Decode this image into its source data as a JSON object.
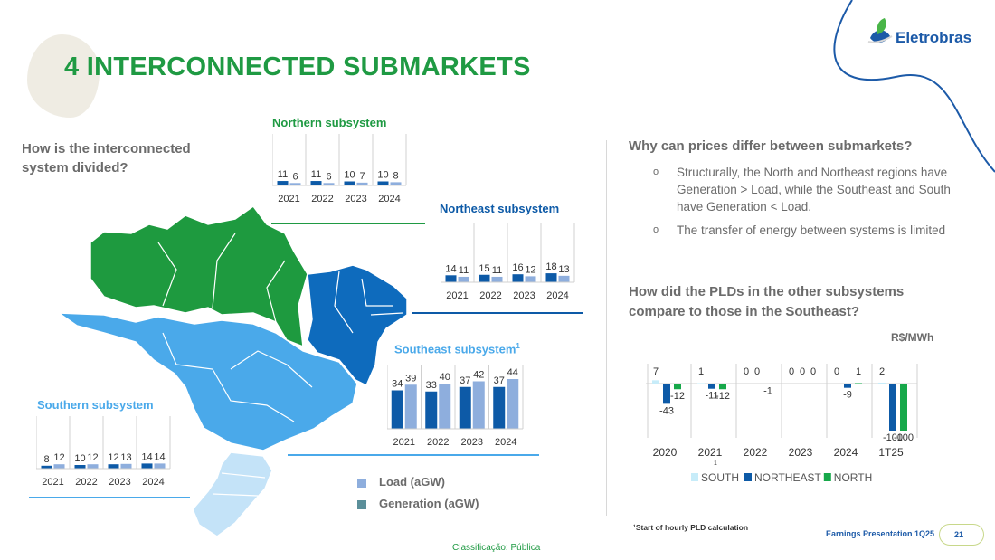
{
  "page": {
    "title": "4 INTERCONNECTED SUBMARKETS",
    "left_question": "How is the interconnected system divided?",
    "logo_text": "Eletrobras",
    "right_question_1": "Why can prices differ between submarkets?",
    "bullets": [
      "Structurally, the North and Northeast regions have Generation > Load, while the Southeast and South have Generation < Load.",
      "The transfer of energy between systems is limited"
    ],
    "right_question_2": "How did the PLDs in the other subsystems compare to those in the Southeast?",
    "unit": "R$/MWh",
    "legend": {
      "load": "Load (aGW)",
      "generation": "Generation (aGW)"
    },
    "footnote": "¹Start of hourly PLD calculation",
    "footnote_sup": "1",
    "classification": "Classificação: Pública",
    "footer": "Earnings Presentation 1Q25",
    "page_number": "21",
    "bullet_mark": "o",
    "icon": "eletrobras-leaf-logo-icon",
    "colors": {
      "title_green": "#1f9a43",
      "dark_blue": "#0d5aa7",
      "light_blue": "#8eaedd",
      "south_cyan": "#c7ecf9",
      "north_green": "#17a84a",
      "map_north": "#1e9a3f",
      "map_northeast": "#0e6bbd",
      "map_southeast": "#4aa9ea",
      "map_south": "#c4e3f8"
    }
  },
  "chart_data": [
    {
      "type": "bar",
      "title": "Northern subsystem",
      "categories": [
        "2021",
        "2022",
        "2023",
        "2024"
      ],
      "series": [
        {
          "name": "Generation (aGW)",
          "values": [
            11,
            11,
            10,
            10
          ]
        },
        {
          "name": "Load (aGW)",
          "values": [
            6,
            6,
            7,
            8
          ]
        }
      ]
    },
    {
      "type": "bar",
      "title": "Northeast subsystem",
      "categories": [
        "2021",
        "2022",
        "2023",
        "2024"
      ],
      "series": [
        {
          "name": "Generation (aGW)",
          "values": [
            14,
            15,
            16,
            18
          ]
        },
        {
          "name": "Load (aGW)",
          "values": [
            11,
            11,
            12,
            13
          ]
        }
      ]
    },
    {
      "type": "bar",
      "title": "Southeast subsystem",
      "title_sup": "1",
      "categories": [
        "2021",
        "2022",
        "2023",
        "2024"
      ],
      "series": [
        {
          "name": "Generation (aGW)",
          "values": [
            34,
            33,
            37,
            37
          ]
        },
        {
          "name": "Load (aGW)",
          "values": [
            39,
            40,
            42,
            44
          ]
        }
      ]
    },
    {
      "type": "bar",
      "title": "Southern subsystem",
      "categories": [
        "2021",
        "2022",
        "2023",
        "2024"
      ],
      "series": [
        {
          "name": "Generation (aGW)",
          "values": [
            8,
            10,
            12,
            14
          ]
        },
        {
          "name": "Load (aGW)",
          "values": [
            12,
            12,
            13,
            14
          ]
        }
      ]
    },
    {
      "type": "bar",
      "categories": [
        "2020",
        "2021",
        "2022",
        "2023",
        "2024",
        "1T25"
      ],
      "category_sup": [
        "",
        "1",
        "",
        "",
        "",
        ""
      ],
      "ylabel": "R$/MWh",
      "series": [
        {
          "name": "SOUTH",
          "values": [
            7,
            1,
            0,
            0,
            0,
            2
          ]
        },
        {
          "name": "NORTHEAST",
          "values": [
            -43,
            -11,
            0,
            0,
            -9,
            -100
          ]
        },
        {
          "name": "NORTH",
          "values": [
            -12,
            -12,
            -1,
            0,
            1,
            -100
          ]
        }
      ],
      "legend": "bottom"
    }
  ]
}
